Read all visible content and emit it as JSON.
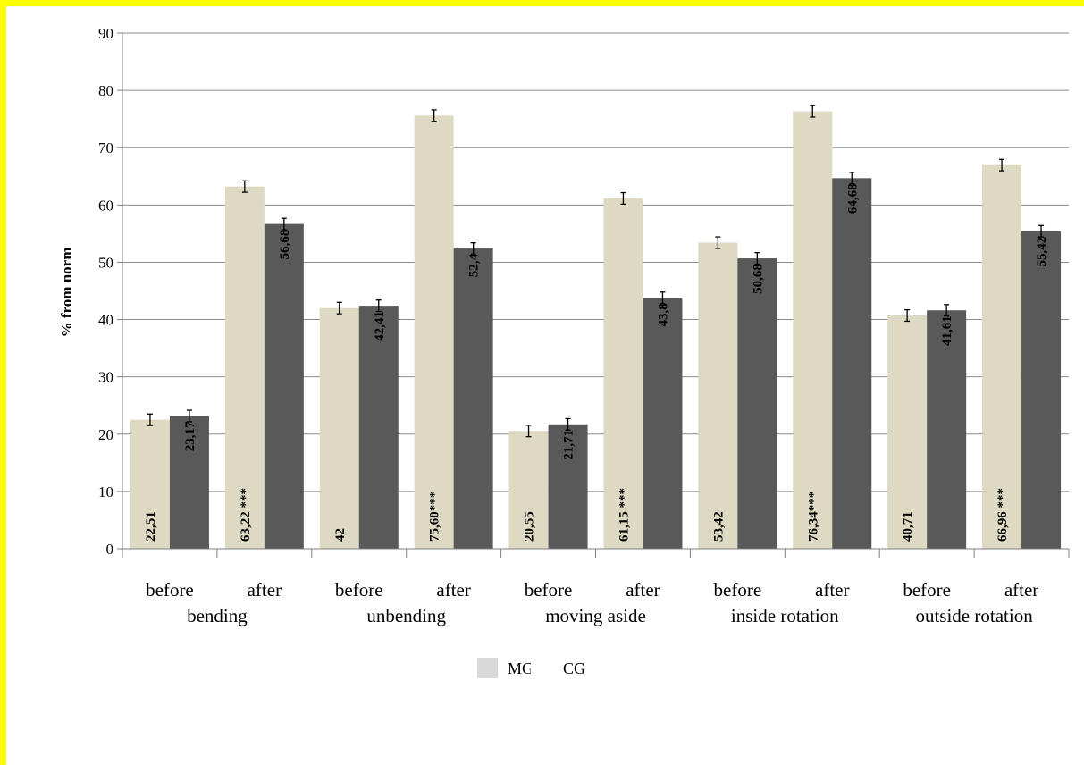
{
  "chart_data": {
    "type": "bar",
    "ylabel": "% from norm",
    "ylim": [
      0,
      90
    ],
    "yticks": [
      "0",
      "10",
      "20",
      "30",
      "40",
      "50",
      "60",
      "70",
      "80",
      "90"
    ],
    "grid": true,
    "legend_position": "bottom",
    "categories": [
      "before",
      "after",
      "before",
      "after",
      "before",
      "after",
      "before",
      "after",
      "before",
      "after"
    ],
    "groups": [
      "bending",
      "unbending",
      "moving aside",
      "inside rotation",
      "outside rotation"
    ],
    "series": [
      {
        "name": "MG",
        "color": "#ddd9c3",
        "values": [
          22.51,
          63.22,
          42,
          75.6,
          20.55,
          61.15,
          53.42,
          76.34,
          40.71,
          66.96
        ],
        "labels": [
          "22,51",
          "63,22 ***",
          "42",
          "75,60***",
          "20,55",
          "61,15 ***",
          "53,42",
          "76,34***",
          "40,71",
          "66,96 ***"
        ]
      },
      {
        "name": "CG",
        "color": "#595959",
        "values": [
          23.17,
          56.68,
          42.41,
          52.4,
          21.71,
          43.8,
          50.68,
          64.68,
          41.61,
          55.42
        ],
        "labels": [
          "23,17",
          "56,68",
          "42,41",
          "52,4",
          "21,71",
          "43,8",
          "50,68",
          "64,68",
          "41,61",
          "55,42"
        ]
      }
    ],
    "error_bar": 1
  }
}
